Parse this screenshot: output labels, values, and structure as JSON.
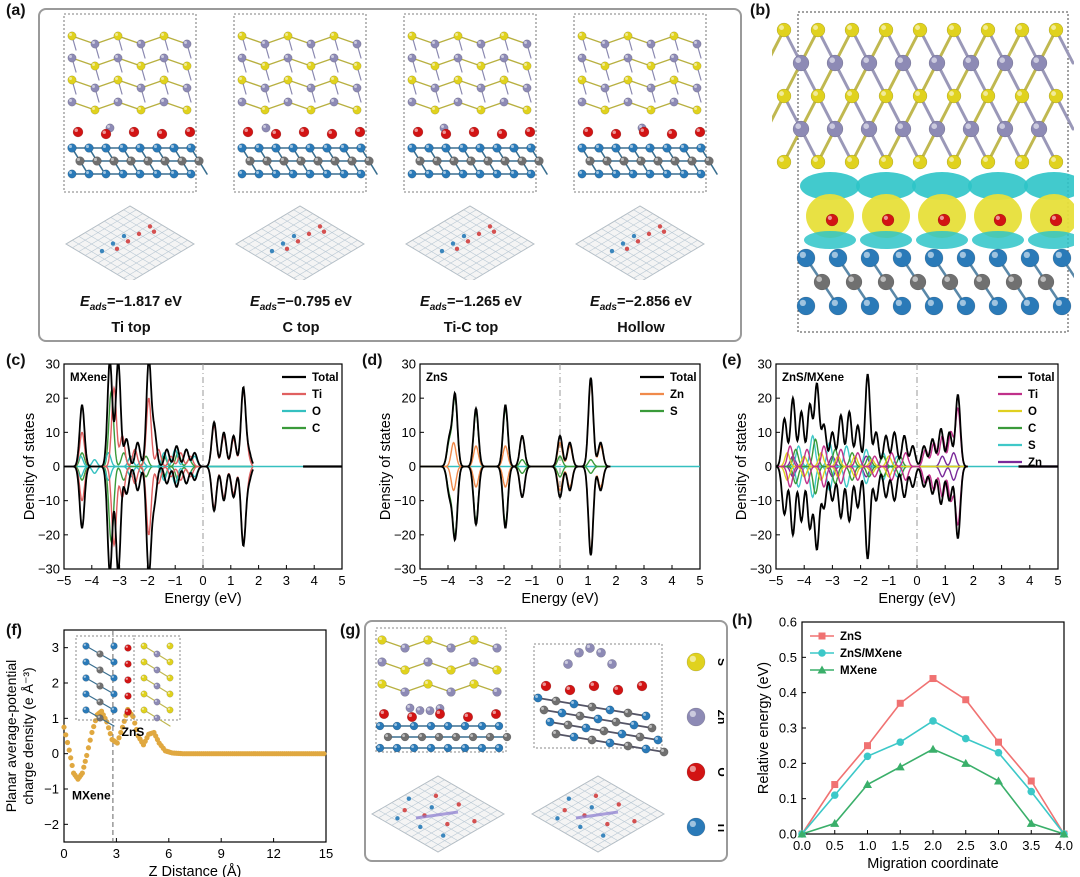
{
  "panel_letters": {
    "a": "(a)",
    "b": "(b)",
    "c": "(c)",
    "d": "(d)",
    "e": "(e)",
    "f": "(f)",
    "g": "(g)",
    "h": "(h)"
  },
  "panel_a": {
    "sites": [
      {
        "e_symbol": "E",
        "e_sub": "ads",
        "energy": "=−1.817 eV",
        "site": "Ti top",
        "zn_pos": "ti"
      },
      {
        "e_symbol": "E",
        "e_sub": "ads",
        "energy": "=−0.795 eV",
        "site": "C top",
        "zn_pos": "c"
      },
      {
        "e_symbol": "E",
        "e_sub": "ads",
        "energy": "=−1.265 eV",
        "site": "Ti-C top",
        "zn_pos": "tic"
      },
      {
        "e_symbol": "E",
        "e_sub": "ads",
        "energy": "=−2.856 eV",
        "site": "Hollow",
        "zn_pos": "hollow"
      }
    ]
  },
  "panel_g": {
    "legend": [
      "S",
      "Zn",
      "O",
      "Ti"
    ]
  },
  "colors": {
    "S": "#e0d21e",
    "Zn": "#8d8ab5",
    "O": "#d21414",
    "Ti": "#2a7ab8",
    "C": "#707070",
    "cyan": "#2ec4c8",
    "yellow": "#e7df3a"
  },
  "chart_data": [
    {
      "id": "c",
      "type": "line",
      "annotation": "MXene",
      "xlabel": "Energy (eV)",
      "ylabel": "Density of states",
      "xlim": [
        -5,
        5
      ],
      "ylim": [
        -30,
        30
      ],
      "xticks": [
        -5,
        -4,
        -3,
        -2,
        -1,
        0,
        1,
        2,
        3,
        4,
        5
      ],
      "yticks": [
        -30,
        -20,
        -10,
        0,
        10,
        20,
        30
      ],
      "legend": [
        "Total",
        "Ti",
        "O",
        "C"
      ],
      "series": [
        {
          "name": "Total",
          "color": "#000000",
          "peaks": [
            [
              -4.35,
              18
            ],
            [
              -3.35,
              31
            ],
            [
              -3.05,
              31
            ],
            [
              -2.75,
              8
            ],
            [
              -2.35,
              7
            ],
            [
              -1.95,
              31
            ],
            [
              -1.75,
              10
            ],
            [
              -1.3,
              5
            ],
            [
              -0.95,
              6
            ],
            [
              -0.6,
              5
            ],
            [
              -0.3,
              4
            ],
            [
              0.4,
              13
            ],
            [
              0.75,
              10
            ],
            [
              1.1,
              9
            ],
            [
              1.45,
              23
            ],
            [
              1.65,
              4
            ]
          ],
          "ext": [
            3.6,
            5
          ]
        },
        {
          "name": "Ti",
          "color": "#e06060",
          "peaks": [
            [
              -4.35,
              10
            ],
            [
              -3.2,
              23
            ],
            [
              -2.9,
              9
            ],
            [
              -2.45,
              5
            ],
            [
              -1.95,
              20
            ],
            [
              -1.6,
              5
            ],
            [
              -1.15,
              3
            ],
            [
              -0.8,
              4
            ],
            [
              -0.45,
              3
            ],
            [
              0.4,
              12
            ],
            [
              0.75,
              9
            ],
            [
              1.1,
              8
            ],
            [
              1.45,
              22
            ],
            [
              1.6,
              3
            ]
          ]
        },
        {
          "name": "O",
          "color": "#35c0c0",
          "peaks": [
            [
              -4.4,
              3
            ],
            [
              -3.9,
              2
            ],
            [
              -3.4,
              4
            ],
            [
              -2.6,
              3
            ],
            [
              -2.2,
              2
            ],
            [
              -1.4,
              4
            ],
            [
              -1.0,
              5
            ],
            [
              -0.6,
              5
            ],
            [
              -0.3,
              3
            ]
          ]
        },
        {
          "name": "C",
          "color": "#3a9a3a",
          "peaks": [
            [
              -4.35,
              4
            ],
            [
              -3.3,
              22
            ],
            [
              -2.85,
              4
            ],
            [
              -2.05,
              3
            ],
            [
              -1.4,
              3
            ],
            [
              -0.9,
              4
            ],
            [
              -0.5,
              2
            ]
          ]
        }
      ]
    },
    {
      "id": "d",
      "type": "line",
      "annotation": "ZnS",
      "xlabel": "Energy (eV)",
      "ylabel": "Density of states",
      "xlim": [
        -5,
        5
      ],
      "ylim": [
        -30,
        30
      ],
      "xticks": [
        -5,
        -4,
        -3,
        -2,
        -1,
        0,
        1,
        2,
        3,
        4,
        5
      ],
      "yticks": [
        -30,
        -20,
        -10,
        0,
        10,
        20,
        30
      ],
      "legend": [
        "Total",
        "Zn",
        "S"
      ],
      "series": [
        {
          "name": "Total",
          "color": "#000000",
          "peaks": [
            [
              -3.95,
              8
            ],
            [
              -3.75,
              21
            ],
            [
              -3.0,
              17
            ],
            [
              -1.95,
              18
            ],
            [
              -1.35,
              9
            ],
            [
              0.0,
              9
            ],
            [
              0.35,
              7
            ],
            [
              1.1,
              26
            ],
            [
              1.45,
              7
            ],
            [
              2.45,
              17
            ],
            [
              2.95,
              12
            ],
            [
              3.4,
              9
            ],
            [
              4.35,
              28
            ]
          ]
        },
        {
          "name": "Zn",
          "color": "#f08a4b",
          "peaks": [
            [
              -3.8,
              7
            ],
            [
              -3.0,
              6
            ],
            [
              -1.95,
              6
            ],
            [
              -1.35,
              9
            ],
            [
              0.0,
              7
            ],
            [
              0.35,
              6
            ],
            [
              1.1,
              25
            ],
            [
              1.45,
              6
            ],
            [
              2.45,
              15
            ],
            [
              2.95,
              11
            ],
            [
              3.4,
              9
            ],
            [
              4.35,
              28
            ]
          ]
        },
        {
          "name": "S",
          "color": "#3a9a3a",
          "peaks": [
            [
              -3.95,
              7
            ],
            [
              -3.75,
              20
            ],
            [
              -3.0,
              16
            ],
            [
              -1.95,
              17
            ],
            [
              -1.35,
              2
            ],
            [
              0.0,
              3
            ],
            [
              1.1,
              2
            ]
          ]
        }
      ]
    },
    {
      "id": "e",
      "type": "line",
      "annotation": "ZnS/MXene",
      "xlabel": "Energy (eV)",
      "ylabel": "Density of states",
      "xlim": [
        -5,
        5
      ],
      "ylim": [
        -30,
        30
      ],
      "xticks": [
        -5,
        -4,
        -3,
        -2,
        -1,
        0,
        1,
        2,
        3,
        4,
        5
      ],
      "yticks": [
        -30,
        -20,
        -10,
        0,
        10,
        20,
        30
      ],
      "legend": [
        "Total",
        "Ti",
        "O",
        "C",
        "S",
        "Zn"
      ],
      "series": [
        {
          "name": "Total",
          "color": "#000000",
          "peaks": [
            [
              -4.7,
              14
            ],
            [
              -4.4,
              20
            ],
            [
              -4.1,
              16
            ],
            [
              -3.8,
              18
            ],
            [
              -3.55,
              24
            ],
            [
              -3.3,
              12
            ],
            [
              -3.0,
              10
            ],
            [
              -2.7,
              15
            ],
            [
              -2.4,
              16
            ],
            [
              -2.1,
              12
            ],
            [
              -1.75,
              27
            ],
            [
              -1.45,
              10
            ],
            [
              -1.1,
              9
            ],
            [
              -0.8,
              10
            ],
            [
              -0.45,
              9
            ],
            [
              -0.15,
              6
            ],
            [
              0.25,
              6
            ],
            [
              0.55,
              8
            ],
            [
              0.85,
              11
            ],
            [
              1.15,
              10
            ],
            [
              1.45,
              21
            ]
          ],
          "ext": [
            3.6,
            5
          ]
        },
        {
          "name": "Ti",
          "color": "#c0308a",
          "peaks": [
            [
              -4.5,
              6
            ],
            [
              -3.9,
              5
            ],
            [
              -3.3,
              6
            ],
            [
              -2.7,
              5
            ],
            [
              -2.1,
              4
            ],
            [
              -1.5,
              3
            ],
            [
              -0.9,
              4
            ],
            [
              -0.4,
              4
            ],
            [
              0.3,
              5
            ],
            [
              0.6,
              7
            ],
            [
              0.9,
              9
            ],
            [
              1.2,
              10
            ],
            [
              1.45,
              17
            ]
          ]
        },
        {
          "name": "O",
          "color": "#e0d020",
          "peaks": [
            [
              -4.6,
              4
            ],
            [
              -4.0,
              3
            ],
            [
              -3.4,
              4
            ],
            [
              -2.8,
              3
            ],
            [
              -2.2,
              3
            ],
            [
              -1.6,
              2
            ],
            [
              -1.0,
              3
            ]
          ]
        },
        {
          "name": "C",
          "color": "#3a9a3a",
          "peaks": [
            [
              -4.3,
              5
            ],
            [
              -3.6,
              8
            ],
            [
              -2.9,
              5
            ],
            [
              -2.3,
              4
            ],
            [
              -1.7,
              3
            ],
            [
              -1.2,
              3
            ],
            [
              -0.6,
              3
            ]
          ]
        },
        {
          "name": "S",
          "color": "#40c8c8",
          "peaks": [
            [
              -4.2,
              6
            ],
            [
              -3.7,
              9
            ],
            [
              -3.1,
              7
            ],
            [
              -2.5,
              6
            ],
            [
              -1.8,
              5
            ],
            [
              -1.2,
              4
            ],
            [
              -0.7,
              3
            ]
          ]
        },
        {
          "name": "Zn",
          "color": "#7a2a9a",
          "peaks": [
            [
              -4.4,
              3
            ],
            [
              -3.0,
              3
            ],
            [
              -1.8,
              3
            ],
            [
              0.9,
              3
            ],
            [
              1.3,
              4
            ]
          ],
          "ext": [
            3.6,
            5
          ]
        }
      ]
    },
    {
      "id": "f",
      "type": "line",
      "xlabel": "Z Distance (Å)",
      "ylabel_lines": [
        "Planar average-potential",
        "charge density (e Å⁻³)"
      ],
      "xlim": [
        0,
        15
      ],
      "ylim": [
        -2.5,
        3.5
      ],
      "xticks": [
        0,
        3,
        6,
        9,
        12,
        15
      ],
      "yticks": [
        -2,
        -1,
        0,
        1,
        2,
        3
      ],
      "annotations": [
        "MXene",
        "ZnS"
      ],
      "interface_x": 2.8,
      "series": [
        {
          "name": "",
          "color": "#e0a840",
          "points": [
            [
              0,
              0.75
            ],
            [
              0.3,
              0.1
            ],
            [
              0.55,
              -0.55
            ],
            [
              0.8,
              -0.72
            ],
            [
              1.05,
              -0.55
            ],
            [
              1.3,
              -0.05
            ],
            [
              1.6,
              0.6
            ],
            [
              1.9,
              1.1
            ],
            [
              2.15,
              1.2
            ],
            [
              2.45,
              0.9
            ],
            [
              2.75,
              0.4
            ],
            [
              3.05,
              0.3
            ],
            [
              3.35,
              0.75
            ],
            [
              3.65,
              1.25
            ],
            [
              3.95,
              1.05
            ],
            [
              4.25,
              0.5
            ],
            [
              4.55,
              0.25
            ],
            [
              4.85,
              0.55
            ],
            [
              5.15,
              0.6
            ],
            [
              5.45,
              0.3
            ],
            [
              5.8,
              0.08
            ],
            [
              6.2,
              0.02
            ],
            [
              6.8,
              0
            ],
            [
              15,
              0
            ]
          ]
        }
      ]
    },
    {
      "id": "h",
      "type": "line",
      "xlabel": "Migration coordinate",
      "ylabel": "Relative energy (eV)",
      "xlim": [
        0,
        4
      ],
      "ylim": [
        0,
        0.6
      ],
      "xticks": [
        0.0,
        0.5,
        1.0,
        1.5,
        2.0,
        2.5,
        3.0,
        3.5,
        4.0
      ],
      "yticks": [
        0.0,
        0.1,
        0.2,
        0.3,
        0.4,
        0.5,
        0.6
      ],
      "legend": [
        "ZnS",
        "ZnS/MXene",
        "MXene"
      ],
      "x": [
        0,
        0.5,
        1.0,
        1.5,
        2.0,
        2.5,
        3.0,
        3.5,
        4.0
      ],
      "series": [
        {
          "name": "ZnS",
          "color": "#f07272",
          "marker": "square",
          "values": [
            0,
            0.14,
            0.25,
            0.37,
            0.44,
            0.38,
            0.26,
            0.15,
            0
          ]
        },
        {
          "name": "ZnS/MXene",
          "color": "#3cc8c8",
          "marker": "circle",
          "values": [
            0,
            0.11,
            0.22,
            0.26,
            0.32,
            0.27,
            0.23,
            0.12,
            0
          ]
        },
        {
          "name": "MXene",
          "color": "#3aaf6a",
          "marker": "triangle",
          "values": [
            0,
            0.03,
            0.14,
            0.19,
            0.24,
            0.2,
            0.15,
            0.03,
            0
          ]
        }
      ]
    }
  ]
}
